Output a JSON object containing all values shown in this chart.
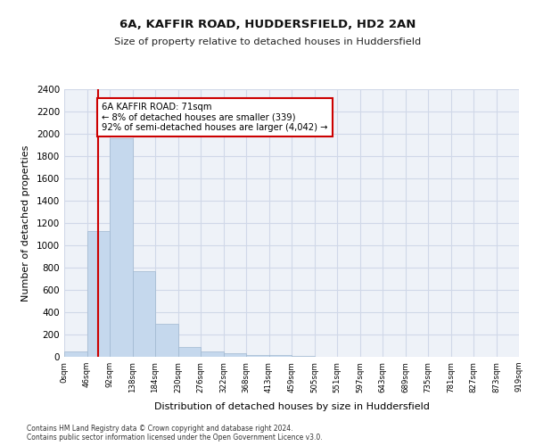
{
  "title1": "6A, KAFFIR ROAD, HUDDERSFIELD, HD2 2AN",
  "title2": "Size of property relative to detached houses in Huddersfield",
  "xlabel": "Distribution of detached houses by size in Huddersfield",
  "ylabel": "Number of detached properties",
  "bar_color": "#c5d8ed",
  "bar_edge_color": "#a0b8d0",
  "grid_color": "#d0d8e8",
  "background_color": "#eef2f8",
  "vline_color": "#cc0000",
  "vline_x": 1.5,
  "annotation_text": "6A KAFFIR ROAD: 71sqm\n← 8% of detached houses are smaller (339)\n92% of semi-detached houses are larger (4,042) →",
  "annotation_box_color": "#ffffff",
  "annotation_box_edge": "#cc0000",
  "tick_labels": [
    "0sqm",
    "46sqm",
    "92sqm",
    "138sqm",
    "184sqm",
    "230sqm",
    "276sqm",
    "322sqm",
    "368sqm",
    "413sqm",
    "459sqm",
    "505sqm",
    "551sqm",
    "597sqm",
    "643sqm",
    "689sqm",
    "735sqm",
    "781sqm",
    "827sqm",
    "873sqm",
    "919sqm"
  ],
  "values": [
    50,
    1130,
    1960,
    770,
    300,
    90,
    45,
    30,
    20,
    15,
    5,
    3,
    2,
    1,
    1,
    0,
    0,
    0,
    0,
    0
  ],
  "ylim": [
    0,
    2400
  ],
  "yticks": [
    0,
    200,
    400,
    600,
    800,
    1000,
    1200,
    1400,
    1600,
    1800,
    2000,
    2200,
    2400
  ],
  "footer1": "Contains HM Land Registry data © Crown copyright and database right 2024.",
  "footer2": "Contains public sector information licensed under the Open Government Licence v3.0."
}
